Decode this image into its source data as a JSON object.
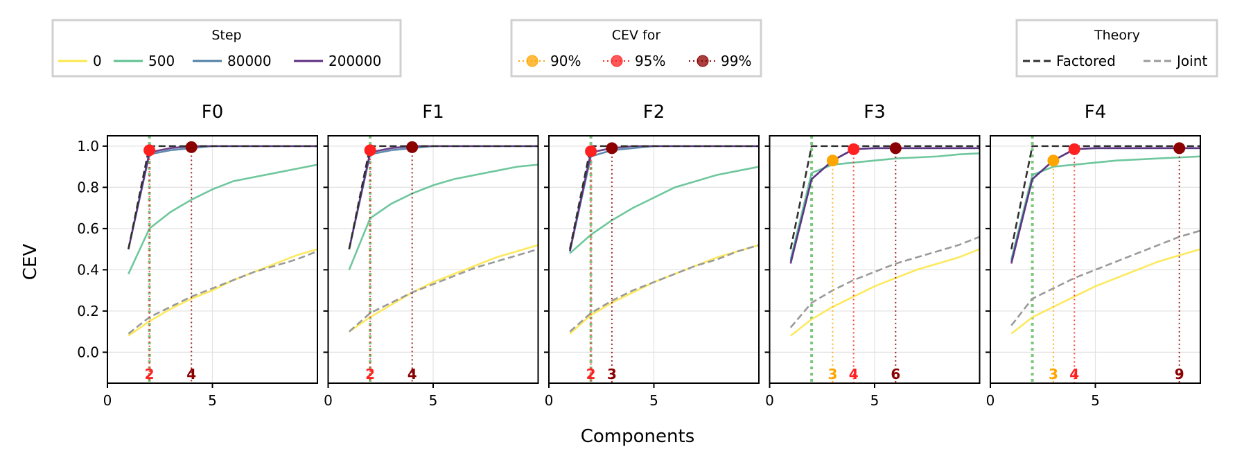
{
  "chart_data": {
    "type": "line",
    "xlabel": "Components",
    "ylabel": "CEV",
    "xlim": [
      0,
      10
    ],
    "ylim": [
      -0.15,
      1.05
    ],
    "xticks": [
      0,
      5
    ],
    "yticks": [
      0.0,
      0.2,
      0.4,
      0.6,
      0.8,
      1.0
    ],
    "ytick_labels": [
      "0.0",
      "0.2",
      "0.4",
      "0.6",
      "0.8",
      "1.0"
    ],
    "x": [
      1,
      2,
      3,
      4,
      5,
      6,
      7,
      8,
      9,
      10
    ],
    "legends": {
      "step": {
        "title": "Step",
        "entries": [
          {
            "label": "0",
            "color": "#fde74c"
          },
          {
            "label": "500",
            "color": "#5ec191"
          },
          {
            "label": "80000",
            "color": "#4e7ea6"
          },
          {
            "label": "200000",
            "color": "#5c2c7e"
          }
        ]
      },
      "cev": {
        "title": "CEV for",
        "entries": [
          {
            "label": "90%",
            "color": "#ffa500"
          },
          {
            "label": "95%",
            "color": "#ff2020"
          },
          {
            "label": "99%",
            "color": "#8b0000"
          }
        ]
      },
      "theory": {
        "title": "Theory",
        "entries": [
          {
            "label": "Factored",
            "color": "#303030"
          },
          {
            "label": "Joint",
            "color": "#9a9a9a"
          }
        ]
      }
    },
    "panels": [
      {
        "title": "F0",
        "theory_line_x": 2,
        "series": [
          {
            "name": "0",
            "values": [
              0.08,
              0.15,
              0.21,
              0.26,
              0.3,
              0.35,
              0.39,
              0.43,
              0.47,
              0.5
            ]
          },
          {
            "name": "500",
            "values": [
              0.38,
              0.6,
              0.68,
              0.74,
              0.79,
              0.83,
              0.85,
              0.87,
              0.89,
              0.91
            ]
          },
          {
            "name": "80000",
            "values": [
              0.5,
              0.96,
              0.98,
              0.99,
              1.0,
              1.0,
              1.0,
              1.0,
              1.0,
              1.0
            ]
          },
          {
            "name": "200000",
            "values": [
              0.5,
              0.97,
              0.99,
              1.0,
              1.0,
              1.0,
              1.0,
              1.0,
              1.0,
              1.0
            ]
          }
        ],
        "factored": [
          0.5,
          1.0,
          1.0,
          1.0,
          1.0,
          1.0,
          1.0,
          1.0,
          1.0,
          1.0
        ],
        "joint": [
          0.09,
          0.17,
          0.22,
          0.27,
          0.31,
          0.35,
          0.39,
          0.42,
          0.45,
          0.49
        ],
        "markers": [
          {
            "pct": "95%",
            "x": 2,
            "y": 0.98,
            "label": "2"
          },
          {
            "pct": "99%",
            "x": 4,
            "y": 0.995,
            "label": "4"
          }
        ]
      },
      {
        "title": "F1",
        "theory_line_x": 2,
        "series": [
          {
            "name": "0",
            "values": [
              0.1,
              0.17,
              0.23,
              0.29,
              0.34,
              0.38,
              0.42,
              0.46,
              0.49,
              0.52
            ]
          },
          {
            "name": "500",
            "values": [
              0.4,
              0.65,
              0.72,
              0.77,
              0.81,
              0.84,
              0.86,
              0.88,
              0.9,
              0.91
            ]
          },
          {
            "name": "80000",
            "values": [
              0.5,
              0.96,
              0.98,
              0.99,
              1.0,
              1.0,
              1.0,
              1.0,
              1.0,
              1.0
            ]
          },
          {
            "name": "200000",
            "values": [
              0.5,
              0.97,
              0.99,
              1.0,
              1.0,
              1.0,
              1.0,
              1.0,
              1.0,
              1.0
            ]
          }
        ],
        "factored": [
          0.5,
          1.0,
          1.0,
          1.0,
          1.0,
          1.0,
          1.0,
          1.0,
          1.0,
          1.0
        ],
        "joint": [
          0.1,
          0.19,
          0.24,
          0.29,
          0.33,
          0.37,
          0.41,
          0.44,
          0.47,
          0.5
        ],
        "markers": [
          {
            "pct": "95%",
            "x": 2,
            "y": 0.98,
            "label": "2"
          },
          {
            "pct": "99%",
            "x": 4,
            "y": 0.995,
            "label": "4"
          }
        ]
      },
      {
        "title": "F2",
        "theory_line_x": 2,
        "series": [
          {
            "name": "0",
            "values": [
              0.09,
              0.18,
              0.24,
              0.29,
              0.34,
              0.38,
              0.42,
              0.46,
              0.49,
              0.52
            ]
          },
          {
            "name": "500",
            "values": [
              0.48,
              0.57,
              0.64,
              0.7,
              0.75,
              0.8,
              0.83,
              0.86,
              0.88,
              0.9
            ]
          },
          {
            "name": "80000",
            "values": [
              0.49,
              0.95,
              0.98,
              0.99,
              1.0,
              1.0,
              1.0,
              1.0,
              1.0,
              1.0
            ]
          },
          {
            "name": "200000",
            "values": [
              0.49,
              0.97,
              0.99,
              1.0,
              1.0,
              1.0,
              1.0,
              1.0,
              1.0,
              1.0
            ]
          }
        ],
        "factored": [
          0.5,
          1.0,
          1.0,
          1.0,
          1.0,
          1.0,
          1.0,
          1.0,
          1.0,
          1.0
        ],
        "joint": [
          0.1,
          0.19,
          0.25,
          0.3,
          0.34,
          0.38,
          0.42,
          0.45,
          0.49,
          0.52
        ],
        "markers": [
          {
            "pct": "95%",
            "x": 2,
            "y": 0.975,
            "label": "2"
          },
          {
            "pct": "99%",
            "x": 3,
            "y": 0.99,
            "label": "3"
          }
        ]
      },
      {
        "title": "F3",
        "theory_line_x": 2,
        "series": [
          {
            "name": "0",
            "values": [
              0.08,
              0.16,
              0.22,
              0.27,
              0.32,
              0.36,
              0.4,
              0.43,
              0.46,
              0.5
            ]
          },
          {
            "name": "500",
            "values": [
              0.45,
              0.87,
              0.91,
              0.92,
              0.93,
              0.94,
              0.945,
              0.95,
              0.96,
              0.965
            ]
          },
          {
            "name": "80000",
            "values": [
              0.44,
              0.84,
              0.93,
              0.985,
              0.99,
              0.99,
              0.99,
              0.99,
              0.99,
              0.99
            ]
          },
          {
            "name": "200000",
            "values": [
              0.43,
              0.84,
              0.93,
              0.985,
              0.99,
              0.99,
              0.99,
              0.99,
              0.99,
              0.99
            ]
          }
        ],
        "factored": [
          0.5,
          1.0,
          1.0,
          1.0,
          1.0,
          1.0,
          1.0,
          1.0,
          1.0,
          1.0
        ],
        "joint": [
          0.12,
          0.24,
          0.3,
          0.35,
          0.39,
          0.43,
          0.46,
          0.49,
          0.52,
          0.56
        ],
        "markers": [
          {
            "pct": "90%",
            "x": 3,
            "y": 0.93,
            "label": "3"
          },
          {
            "pct": "95%",
            "x": 4,
            "y": 0.985,
            "label": "4"
          },
          {
            "pct": "99%",
            "x": 6,
            "y": 0.99,
            "label": "6"
          }
        ]
      },
      {
        "title": "F4",
        "theory_line_x": 2,
        "series": [
          {
            "name": "0",
            "values": [
              0.09,
              0.17,
              0.22,
              0.27,
              0.32,
              0.36,
              0.4,
              0.44,
              0.47,
              0.5
            ]
          },
          {
            "name": "500",
            "values": [
              0.45,
              0.86,
              0.9,
              0.91,
              0.92,
              0.93,
              0.935,
              0.94,
              0.945,
              0.95
            ]
          },
          {
            "name": "80000",
            "values": [
              0.44,
              0.84,
              0.93,
              0.985,
              0.99,
              0.99,
              0.99,
              0.99,
              0.99,
              0.99
            ]
          },
          {
            "name": "200000",
            "values": [
              0.43,
              0.84,
              0.93,
              0.985,
              0.99,
              0.99,
              0.99,
              0.99,
              0.99,
              0.99
            ]
          }
        ],
        "factored": [
          0.5,
          1.0,
          1.0,
          1.0,
          1.0,
          1.0,
          1.0,
          1.0,
          1.0,
          1.0
        ],
        "joint": [
          0.13,
          0.26,
          0.31,
          0.36,
          0.4,
          0.44,
          0.48,
          0.52,
          0.56,
          0.59
        ],
        "markers": [
          {
            "pct": "90%",
            "x": 3,
            "y": 0.93,
            "label": "3"
          },
          {
            "pct": "95%",
            "x": 4,
            "y": 0.985,
            "label": "4"
          },
          {
            "pct": "99%",
            "x": 9,
            "y": 0.99,
            "label": "9"
          }
        ]
      }
    ]
  }
}
